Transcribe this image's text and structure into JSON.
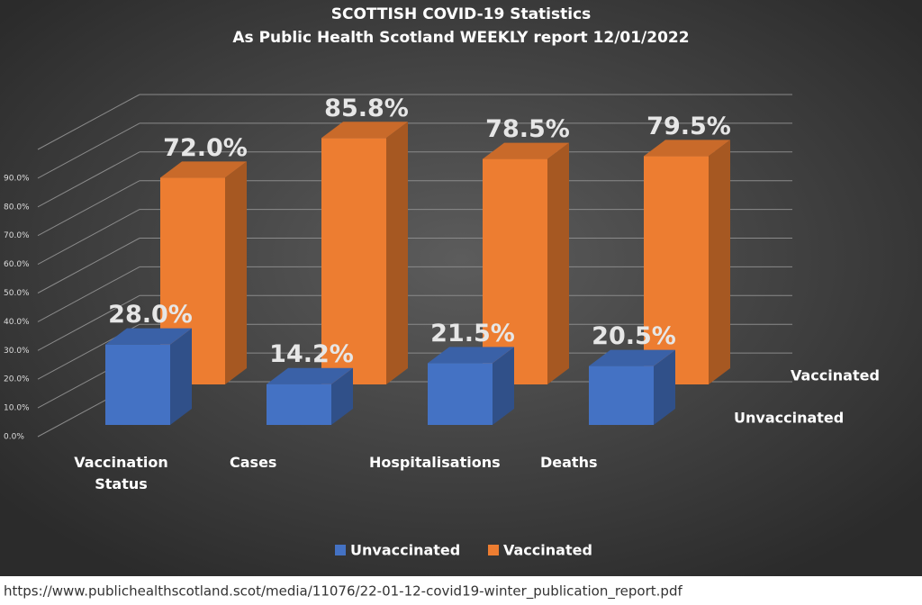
{
  "chart_data": {
    "type": "bar3d",
    "title": "SCOTTISH COVID-19 Statistics",
    "subtitle": "As Public Health Scotland WEEKLY report 12/01/2022",
    "categories": [
      "Vaccination Status",
      "Cases",
      "Hospitalisations",
      "Deaths"
    ],
    "series": [
      {
        "name": "Unvaccinated",
        "color": "#4472c4",
        "values": [
          28.0,
          14.2,
          21.5,
          20.5
        ],
        "value_labels": [
          "28.0%",
          "14.2%",
          "21.5%",
          "20.5%"
        ]
      },
      {
        "name": "Vaccinated",
        "color": "#ed7d31",
        "values": [
          72.0,
          85.8,
          78.5,
          79.5
        ],
        "value_labels": [
          "72.0%",
          "85.8%",
          "78.5%",
          "79.5%"
        ]
      }
    ],
    "ylim": [
      0,
      100
    ],
    "yticks": [
      {
        "value": 0,
        "label": "0.0%"
      },
      {
        "value": 10,
        "label": "10.0%"
      },
      {
        "value": 20,
        "label": "20.0%"
      },
      {
        "value": 30,
        "label": "30.0%"
      },
      {
        "value": 40,
        "label": "40.0%"
      },
      {
        "value": 50,
        "label": "50.0%"
      },
      {
        "value": 60,
        "label": "60.0%"
      },
      {
        "value": 70,
        "label": "70.0%"
      },
      {
        "value": 80,
        "label": "80.0%"
      },
      {
        "value": 90,
        "label": "90.0%"
      }
    ],
    "grid": true,
    "legend": "bottom",
    "source": "https://www.publichealthscotland.scot/media/11076/22-01-12-covid19-winter_publication_report.pdf"
  }
}
